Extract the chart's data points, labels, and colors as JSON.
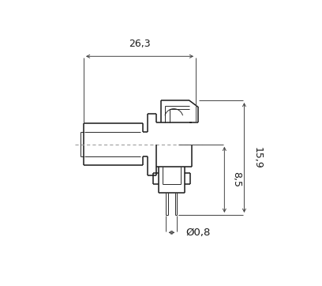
{
  "bg_color": "#ffffff",
  "line_color": "#1a1a1a",
  "dim_color": "#444444",
  "fig_width": 4.08,
  "fig_height": 3.62,
  "dpi": 100,
  "annotations": {
    "dim_263": "26,3",
    "dim_85": "8,5",
    "dim_159": "15,9",
    "dim_08": "Ø0,8"
  }
}
